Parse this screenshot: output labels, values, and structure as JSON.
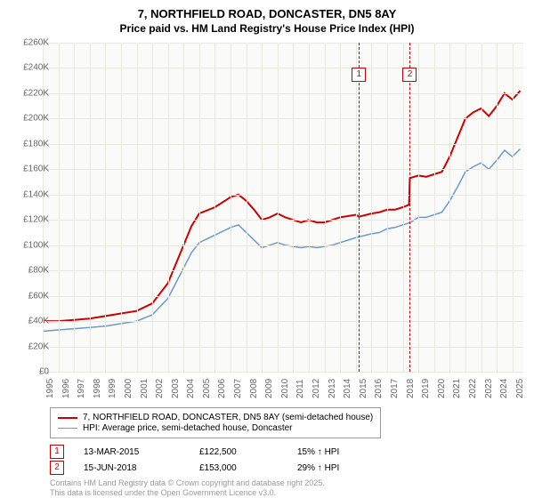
{
  "title_line1": "7, NORTHFIELD ROAD, DONCASTER, DN5 8AY",
  "title_line2": "Price paid vs. HM Land Registry's House Price Index (HPI)",
  "chart": {
    "type": "line",
    "background_color": "#fafaf8",
    "grid_color": "#e8e8e0",
    "ylim": [
      0,
      260000
    ],
    "ytick_step": 20000,
    "ytick_labels": [
      "£0",
      "£20K",
      "£40K",
      "£60K",
      "£80K",
      "£100K",
      "£120K",
      "£140K",
      "£160K",
      "£180K",
      "£200K",
      "£220K",
      "£240K",
      "£260K"
    ],
    "xlim": [
      1995,
      2025.7
    ],
    "xticks": [
      1995,
      1996,
      1997,
      1998,
      1999,
      2000,
      2001,
      2002,
      2003,
      2004,
      2005,
      2006,
      2007,
      2008,
      2009,
      2010,
      2011,
      2012,
      2013,
      2014,
      2015,
      2016,
      2017,
      2018,
      2019,
      2020,
      2021,
      2022,
      2023,
      2024,
      2025
    ],
    "series": [
      {
        "name": "price_paid",
        "label": "7, NORTHFIELD ROAD, DONCASTER, DN5 8AY (semi-detached house)",
        "color": "#cc0000",
        "width": 2,
        "data": [
          [
            1995,
            40000
          ],
          [
            1996,
            40000
          ],
          [
            1997,
            41000
          ],
          [
            1998,
            42000
          ],
          [
            1999,
            44000
          ],
          [
            2000,
            46000
          ],
          [
            2001,
            48000
          ],
          [
            2002,
            54000
          ],
          [
            2003,
            70000
          ],
          [
            2003.5,
            85000
          ],
          [
            2004,
            100000
          ],
          [
            2004.5,
            115000
          ],
          [
            2005,
            125000
          ],
          [
            2006,
            130000
          ],
          [
            2007,
            138000
          ],
          [
            2007.5,
            140000
          ],
          [
            2008,
            135000
          ],
          [
            2008.5,
            128000
          ],
          [
            2009,
            120000
          ],
          [
            2009.5,
            122000
          ],
          [
            2010,
            125000
          ],
          [
            2010.5,
            122000
          ],
          [
            2011,
            120000
          ],
          [
            2011.5,
            118000
          ],
          [
            2012,
            120000
          ],
          [
            2012.5,
            118000
          ],
          [
            2013,
            118000
          ],
          [
            2013.5,
            120000
          ],
          [
            2014,
            122000
          ],
          [
            2014.5,
            123000
          ],
          [
            2015,
            124000
          ],
          [
            2015.2,
            122500
          ],
          [
            2016,
            125000
          ],
          [
            2016.5,
            126000
          ],
          [
            2017,
            128000
          ],
          [
            2017.5,
            128000
          ],
          [
            2018,
            130000
          ],
          [
            2018.4,
            132000
          ],
          [
            2018.45,
            153000
          ],
          [
            2019,
            155000
          ],
          [
            2019.5,
            154000
          ],
          [
            2020,
            156000
          ],
          [
            2020.5,
            158000
          ],
          [
            2021,
            170000
          ],
          [
            2021.5,
            185000
          ],
          [
            2022,
            200000
          ],
          [
            2022.5,
            205000
          ],
          [
            2023,
            208000
          ],
          [
            2023.5,
            202000
          ],
          [
            2024,
            210000
          ],
          [
            2024.5,
            220000
          ],
          [
            2025,
            215000
          ],
          [
            2025.5,
            222000
          ]
        ]
      },
      {
        "name": "hpi",
        "label": "HPI: Average price, semi-detached house, Doncaster",
        "color": "#6b99cf",
        "width": 1.5,
        "data": [
          [
            1995,
            32000
          ],
          [
            1996,
            33000
          ],
          [
            1997,
            34000
          ],
          [
            1998,
            35000
          ],
          [
            1999,
            36000
          ],
          [
            2000,
            38000
          ],
          [
            2001,
            40000
          ],
          [
            2002,
            45000
          ],
          [
            2003,
            58000
          ],
          [
            2003.5,
            70000
          ],
          [
            2004,
            82000
          ],
          [
            2004.5,
            94000
          ],
          [
            2005,
            102000
          ],
          [
            2006,
            108000
          ],
          [
            2007,
            114000
          ],
          [
            2007.5,
            116000
          ],
          [
            2008,
            110000
          ],
          [
            2008.5,
            104000
          ],
          [
            2009,
            98000
          ],
          [
            2009.5,
            100000
          ],
          [
            2010,
            102000
          ],
          [
            2010.5,
            100000
          ],
          [
            2011,
            99000
          ],
          [
            2011.5,
            98000
          ],
          [
            2012,
            99000
          ],
          [
            2012.5,
            98000
          ],
          [
            2013,
            99000
          ],
          [
            2013.5,
            100000
          ],
          [
            2014,
            102000
          ],
          [
            2014.5,
            104000
          ],
          [
            2015,
            106000
          ],
          [
            2016,
            109000
          ],
          [
            2016.5,
            110000
          ],
          [
            2017,
            113000
          ],
          [
            2017.5,
            114000
          ],
          [
            2018,
            116000
          ],
          [
            2018.5,
            118000
          ],
          [
            2019,
            122000
          ],
          [
            2019.5,
            122000
          ],
          [
            2020,
            124000
          ],
          [
            2020.5,
            126000
          ],
          [
            2021,
            135000
          ],
          [
            2021.5,
            146000
          ],
          [
            2022,
            158000
          ],
          [
            2022.5,
            162000
          ],
          [
            2023,
            165000
          ],
          [
            2023.5,
            160000
          ],
          [
            2024,
            167000
          ],
          [
            2024.5,
            175000
          ],
          [
            2025,
            170000
          ],
          [
            2025.5,
            176000
          ]
        ]
      }
    ],
    "markers": [
      {
        "n": "1",
        "x": 2015.2,
        "color": "#cc0000"
      },
      {
        "n": "2",
        "x": 2018.45,
        "color": "#cc0000"
      }
    ]
  },
  "legend": {
    "border_color": "#999999"
  },
  "transactions": [
    {
      "n": "1",
      "date": "13-MAR-2015",
      "price": "£122,500",
      "delta": "15% ↑ HPI",
      "color": "#cc0000"
    },
    {
      "n": "2",
      "date": "15-JUN-2018",
      "price": "£153,000",
      "delta": "29% ↑ HPI",
      "color": "#cc0000"
    }
  ],
  "footer_line1": "Contains HM Land Registry data © Crown copyright and database right 2025.",
  "footer_line2": "This data is licensed under the Open Government Licence v3.0."
}
